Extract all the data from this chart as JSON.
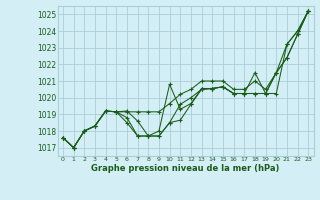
{
  "bg_color": "#d4eef5",
  "grid_color": "#aacdd8",
  "line_color": "#1a5c1a",
  "title": "Graphe pression niveau de la mer (hPa)",
  "yticks": [
    1017,
    1018,
    1019,
    1020,
    1021,
    1022,
    1023,
    1024,
    1025
  ],
  "xticks": [
    0,
    1,
    2,
    3,
    4,
    5,
    6,
    7,
    8,
    9,
    10,
    11,
    12,
    13,
    14,
    15,
    16,
    17,
    18,
    19,
    20,
    21,
    22,
    23
  ],
  "xlim": [
    -0.5,
    23.5
  ],
  "ylim": [
    1016.5,
    1025.5
  ],
  "series": [
    [
      1017.6,
      1017.0,
      1018.0,
      1018.3,
      1019.2,
      1019.15,
      1019.2,
      1018.6,
      1017.7,
      1017.7,
      1018.5,
      1018.65,
      1019.6,
      1020.5,
      1020.55,
      1020.65,
      1020.25,
      1020.25,
      1020.25,
      1020.25,
      1021.5,
      1022.4,
      1023.8,
      1025.2
    ],
    [
      1017.6,
      1017.0,
      1018.0,
      1018.3,
      1019.2,
      1019.15,
      1018.5,
      1017.7,
      1017.7,
      1018.0,
      1020.8,
      1019.3,
      1019.65,
      1020.55,
      1020.55,
      1020.65,
      1020.25,
      1020.25,
      1020.25,
      1020.25,
      1021.5,
      1022.4,
      1023.8,
      1025.2
    ],
    [
      1017.6,
      1017.0,
      1018.0,
      1018.3,
      1019.2,
      1019.15,
      1018.8,
      1017.7,
      1017.7,
      1017.7,
      1018.5,
      1019.6,
      1020.0,
      1020.5,
      1020.55,
      1020.65,
      1020.25,
      1020.25,
      1021.5,
      1020.25,
      1020.25,
      1023.2,
      1024.0,
      1025.2
    ],
    [
      1017.6,
      1017.0,
      1018.0,
      1018.3,
      1019.2,
      1019.15,
      1019.15,
      1019.15,
      1019.15,
      1019.15,
      1019.65,
      1020.2,
      1020.5,
      1021.0,
      1021.0,
      1021.0,
      1020.5,
      1020.5,
      1021.0,
      1020.5,
      1021.5,
      1023.2,
      1024.0,
      1025.2
    ]
  ]
}
